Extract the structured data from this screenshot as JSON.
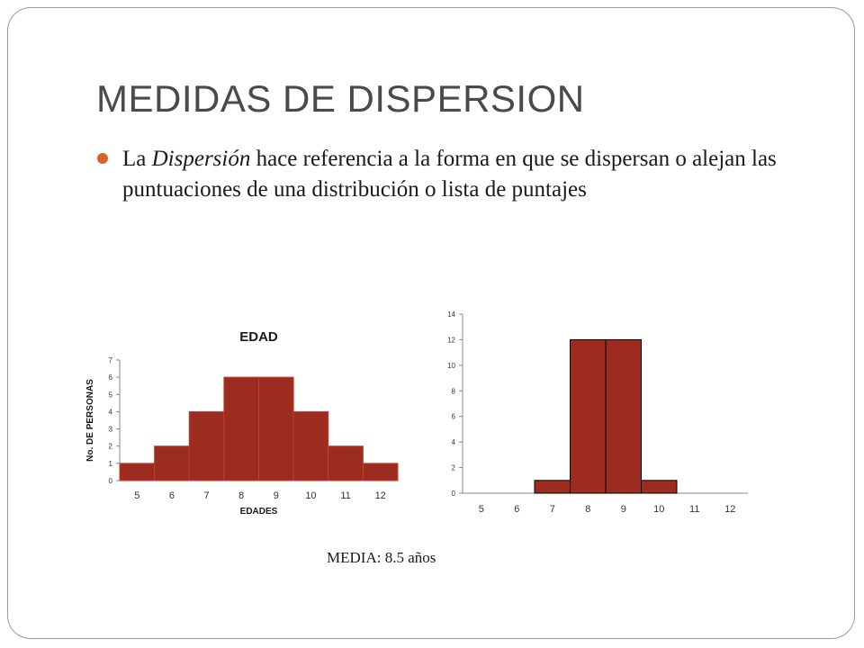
{
  "slide": {
    "title": "MEDIDAS DE DISPERSION",
    "bullet": {
      "pre": "La ",
      "emph": "Dispersión",
      "post": " hace referencia a la forma en que se dispersan o alejan las puntuaciones de una distribución o lista de puntajes"
    },
    "media_label": "MEDIA: 8.5 años",
    "bullet_color": "#d9622b"
  },
  "chart_data": [
    {
      "type": "bar",
      "title": "EDAD",
      "xlabel": "EDADES",
      "ylabel": "No. DE PERSONAS",
      "categories": [
        "5",
        "6",
        "7",
        "8",
        "9",
        "10",
        "11",
        "12"
      ],
      "values": [
        1,
        2,
        4,
        6,
        6,
        4,
        2,
        1
      ],
      "ylim": [
        0,
        7
      ],
      "yticks": [
        0,
        1,
        2,
        3,
        4,
        5,
        6,
        7
      ],
      "bar_color": "#9b2c1f",
      "bar_edge": "#c0402f",
      "grid": false
    },
    {
      "type": "bar",
      "title": "",
      "xlabel": "",
      "ylabel": "",
      "categories": [
        "5",
        "6",
        "7",
        "8",
        "9",
        "10",
        "11",
        "12"
      ],
      "values": [
        0,
        0,
        1,
        12,
        12,
        1,
        0,
        0
      ],
      "ylim": [
        0,
        14
      ],
      "yticks": [
        0,
        2,
        4,
        6,
        8,
        10,
        12,
        14
      ],
      "bar_color": "#9b2c1f",
      "bar_edge": "#000000",
      "grid": false
    }
  ]
}
